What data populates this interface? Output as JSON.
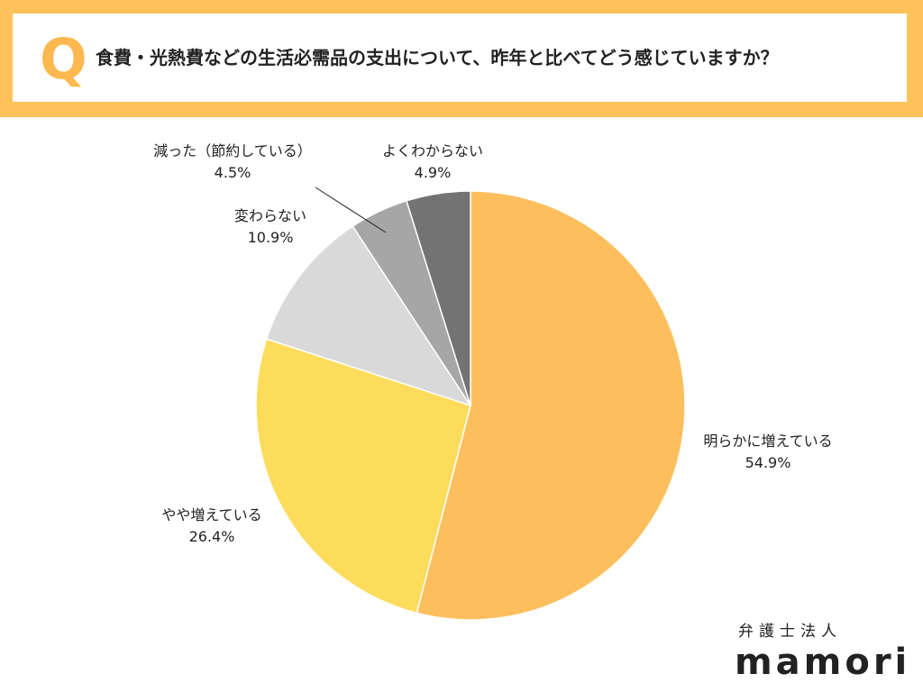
{
  "header": {
    "q_letter": "Q",
    "question": "食費・光熱費などの生活必需品の支出について、昨年と比べてどう感じていますか？"
  },
  "brand": {
    "sub": "弁護士法人",
    "name": "mamori"
  },
  "chart_data": {
    "type": "pie",
    "title": "",
    "start": "top",
    "direction": "clockwise",
    "slices": [
      {
        "label": "明らかに増えている",
        "value": 54.9,
        "value_text": "54.9%",
        "color": "#FDBF5E"
      },
      {
        "label": "やや増えている",
        "value": 26.4,
        "value_text": "26.4%",
        "color": "#FDDC5C"
      },
      {
        "label": "変わらない",
        "value": 10.9,
        "value_text": "10.9%",
        "color": "#D9D9D9"
      },
      {
        "label": "減った（節約している）",
        "value": 4.5,
        "value_text": "4.5%",
        "color": "#A6A6A6"
      },
      {
        "label": "よくわからない",
        "value": 4.9,
        "value_text": "4.9%",
        "color": "#737373"
      }
    ]
  }
}
